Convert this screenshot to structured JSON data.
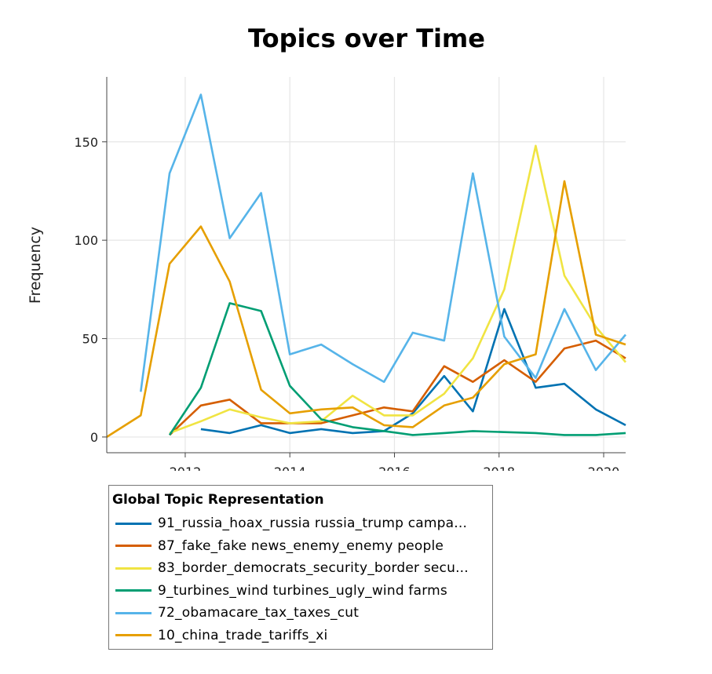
{
  "chart_data": {
    "type": "line",
    "title": "Topics over Time",
    "xlabel": "",
    "ylabel": "Frequency",
    "xlim": [
      2010.5,
      2020.42
    ],
    "ylim": [
      -8,
      183
    ],
    "x_ticks": [
      2012,
      2014,
      2016,
      2018,
      2020
    ],
    "y_ticks": [
      0,
      50,
      100,
      150
    ],
    "grid": true,
    "legend_position": "bottom-left",
    "legend_title": "Global Topic Representation",
    "series": [
      {
        "name": "91_russia_hoax_russia russia_trump campa...",
        "color": "#0072B2",
        "points": [
          [
            2012.3,
            4
          ],
          [
            2012.85,
            2
          ],
          [
            2013.45,
            6
          ],
          [
            2014.0,
            2
          ],
          [
            2014.6,
            4
          ],
          [
            2015.2,
            2
          ],
          [
            2015.8,
            3
          ],
          [
            2016.35,
            12
          ],
          [
            2016.95,
            31
          ],
          [
            2017.5,
            13
          ],
          [
            2018.1,
            65
          ],
          [
            2018.7,
            25
          ],
          [
            2019.25,
            27
          ],
          [
            2019.85,
            14
          ],
          [
            2020.42,
            6
          ]
        ]
      },
      {
        "name": "87_fake_fake news_enemy_enemy people",
        "color": "#D55E00",
        "points": [
          [
            2011.7,
            1
          ],
          [
            2012.3,
            16
          ],
          [
            2012.85,
            19
          ],
          [
            2013.45,
            7
          ],
          [
            2014.0,
            7
          ],
          [
            2014.6,
            7
          ],
          [
            2015.2,
            11
          ],
          [
            2015.8,
            15
          ],
          [
            2016.35,
            13
          ],
          [
            2016.95,
            36
          ],
          [
            2017.5,
            28
          ],
          [
            2018.1,
            39
          ],
          [
            2018.7,
            28
          ],
          [
            2019.25,
            45
          ],
          [
            2019.85,
            49
          ],
          [
            2020.42,
            40
          ]
        ]
      },
      {
        "name": "83_border_democrats_security_border secu...",
        "color": "#F0E442",
        "points": [
          [
            2011.7,
            2
          ],
          [
            2012.3,
            8
          ],
          [
            2012.85,
            14
          ],
          [
            2013.45,
            10
          ],
          [
            2014.0,
            7
          ],
          [
            2014.6,
            8
          ],
          [
            2015.2,
            21
          ],
          [
            2015.8,
            11
          ],
          [
            2016.35,
            11
          ],
          [
            2016.95,
            22
          ],
          [
            2017.5,
            40
          ],
          [
            2018.1,
            75
          ],
          [
            2018.7,
            148
          ],
          [
            2019.25,
            82
          ],
          [
            2019.85,
            56
          ],
          [
            2020.42,
            38
          ]
        ]
      },
      {
        "name": "9_turbines_wind turbines_ugly_wind farms",
        "color": "#009E73",
        "points": [
          [
            2011.7,
            1
          ],
          [
            2012.3,
            25
          ],
          [
            2012.85,
            68
          ],
          [
            2013.45,
            64
          ],
          [
            2014.0,
            26
          ],
          [
            2014.6,
            9
          ],
          [
            2015.2,
            5
          ],
          [
            2015.8,
            3
          ],
          [
            2016.35,
            1
          ],
          [
            2016.95,
            2
          ],
          [
            2017.5,
            3
          ],
          [
            2018.1,
            2.5
          ],
          [
            2018.7,
            2
          ],
          [
            2019.25,
            1
          ],
          [
            2019.85,
            1
          ],
          [
            2020.42,
            2
          ]
        ]
      },
      {
        "name": "72_obamacare_tax_taxes_cut",
        "color": "#56B4E9",
        "points": [
          [
            2011.15,
            23
          ],
          [
            2011.7,
            134
          ],
          [
            2012.3,
            174
          ],
          [
            2012.85,
            101
          ],
          [
            2013.45,
            124
          ],
          [
            2014.0,
            42
          ],
          [
            2014.6,
            47
          ],
          [
            2015.2,
            37
          ],
          [
            2015.8,
            28
          ],
          [
            2016.35,
            53
          ],
          [
            2016.95,
            49
          ],
          [
            2017.5,
            134
          ],
          [
            2018.1,
            51
          ],
          [
            2018.7,
            30
          ],
          [
            2019.25,
            65
          ],
          [
            2019.85,
            34
          ],
          [
            2020.42,
            52
          ]
        ]
      },
      {
        "name": "10_china_trade_tariffs_xi",
        "color": "#E69F00",
        "points": [
          [
            2010.5,
            0
          ],
          [
            2011.15,
            11
          ],
          [
            2011.7,
            88
          ],
          [
            2012.3,
            107
          ],
          [
            2012.85,
            79
          ],
          [
            2013.45,
            24
          ],
          [
            2014.0,
            12
          ],
          [
            2014.6,
            14
          ],
          [
            2015.2,
            15
          ],
          [
            2015.8,
            6
          ],
          [
            2016.35,
            5
          ],
          [
            2016.95,
            16
          ],
          [
            2017.5,
            20
          ],
          [
            2018.1,
            37
          ],
          [
            2018.7,
            42
          ],
          [
            2019.25,
            130
          ],
          [
            2019.85,
            52
          ],
          [
            2020.42,
            47
          ]
        ]
      }
    ]
  }
}
